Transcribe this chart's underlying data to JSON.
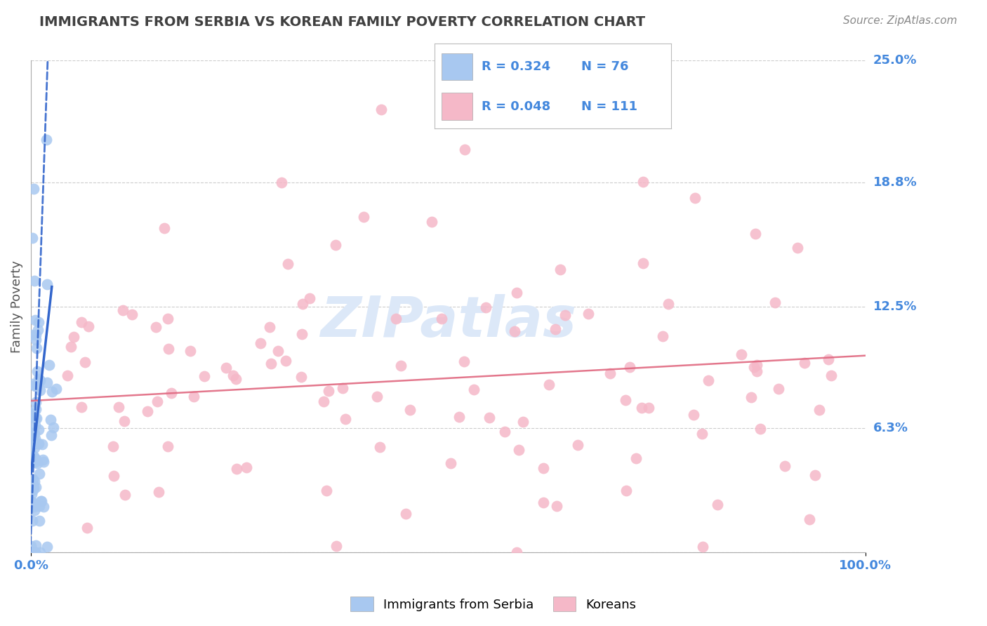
{
  "title": "IMMIGRANTS FROM SERBIA VS KOREAN FAMILY POVERTY CORRELATION CHART",
  "source_text": "Source: ZipAtlas.com",
  "ylabel": "Family Poverty",
  "xlim": [
    0,
    1.0
  ],
  "ylim": [
    0,
    0.25
  ],
  "yticks": [
    0.0,
    0.063,
    0.125,
    0.188,
    0.25
  ],
  "ytick_labels": [
    "",
    "6.3%",
    "12.5%",
    "18.8%",
    "25.0%"
  ],
  "xtick_labels": [
    "0.0%",
    "100.0%"
  ],
  "serbia_R": 0.324,
  "serbia_N": 76,
  "korean_R": 0.048,
  "korean_N": 111,
  "serbia_color": "#a8c8f0",
  "korean_color": "#f5b8c8",
  "trend_serbia_color": "#3366cc",
  "trend_korean_color": "#e06880",
  "watermark": "ZIPatlas",
  "watermark_color": "#dce8f8",
  "legend_label_serbia": "Immigrants from Serbia",
  "legend_label_korean": "Koreans",
  "background_color": "#ffffff",
  "grid_color": "#cccccc",
  "title_color": "#404040",
  "blue_text_color": "#4488dd",
  "black_text_color": "#222222",
  "source_color": "#888888",
  "axis_label_color": "#555555"
}
